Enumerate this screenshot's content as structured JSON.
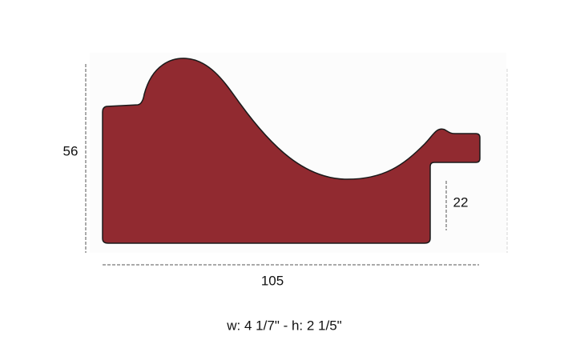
{
  "dimensions": {
    "height": 56,
    "rabbet": 22,
    "width": 105
  },
  "caption": "w: 4 1/7\" - h: 2 1/5\""
}
